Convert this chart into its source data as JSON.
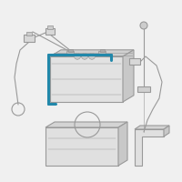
{
  "bg": "#f0f0f0",
  "lc": "#999999",
  "hc": "#2288aa",
  "lw": 0.8,
  "fig_w": 2.0,
  "fig_h": 2.0,
  "dpi": 100
}
